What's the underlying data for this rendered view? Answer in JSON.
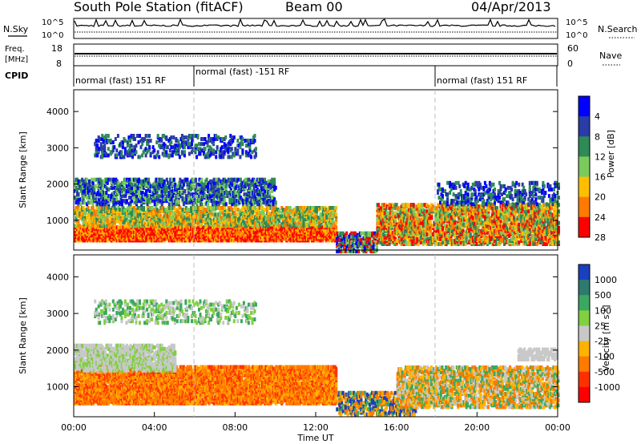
{
  "header": {
    "station": "South Pole Station (fitACF)",
    "beam": "Beam 00",
    "date": "04/Apr/2013"
  },
  "noise_panel": {
    "left_label": "N.Sky",
    "right_label": "N.Search",
    "left_ticks": [
      "10^5",
      "10^0"
    ],
    "right_ticks": [
      "10^5",
      "10^0"
    ]
  },
  "freq_panel": {
    "left_label_line1": "Freq.",
    "left_label_line2": "[MHz]",
    "right_label": "Nave",
    "left_ticks": [
      "18",
      "8"
    ],
    "right_ticks": [
      "60",
      "0"
    ]
  },
  "cpid": {
    "label": "CPID",
    "segments": [
      {
        "text": "normal (fast) 151 RF",
        "start_hour": 0,
        "end_hour": 6
      },
      {
        "text": "normal (fast) -151 RF",
        "start_hour": 6,
        "end_hour": 18
      },
      {
        "text": "normal (fast) 151 RF",
        "start_hour": 18,
        "end_hour": 24
      }
    ]
  },
  "chart_data": [
    {
      "type": "heatmap",
      "title": "",
      "xlabel": "",
      "ylabel": "Slant Range [km]",
      "ylim": [
        180,
        4600
      ],
      "xlim_hours": [
        0,
        24
      ],
      "y_ticks": [
        1000,
        2000,
        3000,
        4000
      ],
      "y_tick_labels": [
        "1000",
        "2000",
        "3000",
        "4000"
      ],
      "colorbar": {
        "label": "Power [dB]",
        "tick_labels": [
          "4",
          "8",
          "12",
          "16",
          "20",
          "24",
          "28"
        ],
        "colors": [
          "#0000ff",
          "#2a3ca8",
          "#2e8a57",
          "#7acb5c",
          "#ffbf00",
          "#ff7a00",
          "#ff0000"
        ]
      }
    },
    {
      "type": "heatmap",
      "title": "",
      "xlabel": "Time UT",
      "ylabel": "Slant Range [km]",
      "ylim": [
        180,
        4600
      ],
      "xlim_hours": [
        0,
        24
      ],
      "x_tick_labels": [
        "00:00",
        "04:00",
        "08:00",
        "12:00",
        "16:00",
        "20:00",
        "00:00"
      ],
      "y_ticks": [
        1000,
        2000,
        3000,
        4000
      ],
      "y_tick_labels": [
        "1000",
        "2000",
        "3000",
        "4000"
      ],
      "colorbar": {
        "label": "Velocity [m s^-1]",
        "tick_labels": [
          "1000",
          "500",
          "100",
          "25",
          "-25",
          "-100",
          "-500",
          "-1000"
        ],
        "colors": [
          "#1a3fbf",
          "#2d7a6e",
          "#3aa860",
          "#80d040",
          "#c8c8c8",
          "#ffb300",
          "#ff7a00",
          "#ff3000",
          "#ff0000"
        ]
      }
    }
  ]
}
